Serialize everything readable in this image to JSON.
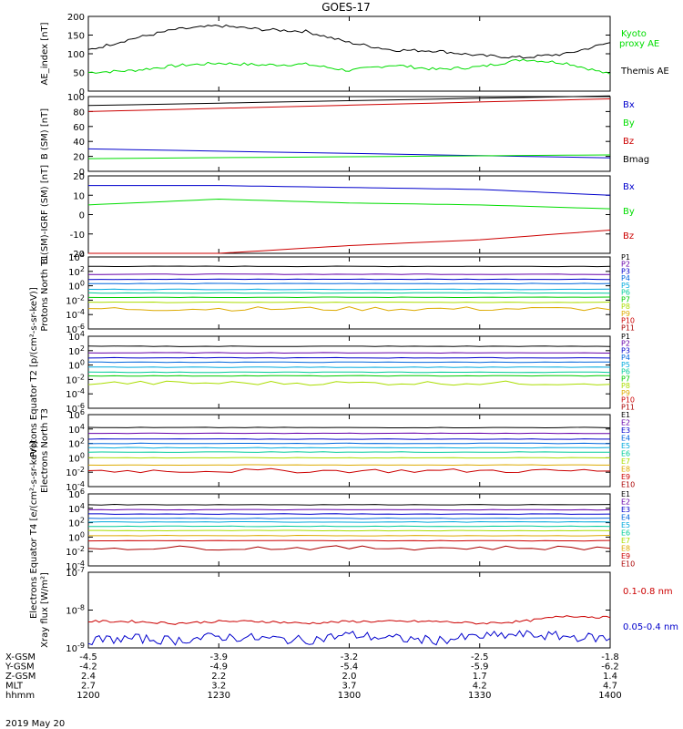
{
  "title": "GOES-17",
  "date": "2019 May 20",
  "colors": {
    "black": "#000000",
    "green": "#00dd00",
    "blue": "#0000cc",
    "red": "#cc0000",
    "p": [
      "#000000",
      "#6600aa",
      "#0000cc",
      "#0066dd",
      "#00aadd",
      "#00cc99",
      "#00cc00",
      "#aadd00",
      "#ddaa00",
      "#cc0000",
      "#aa0000"
    ],
    "e": [
      "#000000",
      "#6600aa",
      "#0000cc",
      "#0066dd",
      "#00aadd",
      "#00cc99",
      "#aadd00",
      "#ddaa00",
      "#cc0000",
      "#aa0000"
    ]
  },
  "x_axis": {
    "rows": [
      {
        "label": "X-GSM",
        "values": [
          "-4.5",
          "-3.9",
          "-3.2",
          "-2.5",
          "-1.8"
        ]
      },
      {
        "label": "Y-GSM",
        "values": [
          "-4.2",
          "-4.9",
          "-5.4",
          "-5.9",
          "-6.2"
        ]
      },
      {
        "label": "Z-GSM",
        "values": [
          "2.4",
          "2.2",
          "2.0",
          "1.7",
          "1.4"
        ]
      },
      {
        "label": "MLT",
        "values": [
          "2.7",
          "3.2",
          "3.7",
          "4.2",
          "4.7"
        ]
      },
      {
        "label": "hhmm",
        "values": [
          "1200",
          "1230",
          "1300",
          "1330",
          "1400"
        ]
      }
    ],
    "hhmm": [
      "1200",
      "1230",
      "1300",
      "1330",
      "1400"
    ]
  },
  "chart_data": [
    {
      "type": "line",
      "ylabel": "AE_index [nT]",
      "yscale": "linear",
      "ylim": [
        0,
        200
      ],
      "yticks": [
        "0",
        "50",
        "100",
        "150",
        "200"
      ],
      "x": [
        1200,
        1210,
        1220,
        1230,
        1240,
        1250,
        1300,
        1310,
        1320,
        1330,
        1340,
        1350,
        1400
      ],
      "series": [
        {
          "name": "Kyoto proxy AE",
          "color": "green",
          "values": [
            50,
            55,
            68,
            75,
            70,
            72,
            55,
            70,
            58,
            65,
            85,
            75,
            45
          ]
        },
        {
          "name": "Themis AE",
          "color": "black",
          "values": [
            110,
            140,
            165,
            175,
            165,
            160,
            130,
            110,
            108,
            95,
            90,
            100,
            130
          ]
        }
      ],
      "legend": [
        "Kyoto",
        "proxy AE",
        "Themis AE"
      ]
    },
    {
      "type": "line",
      "ylabel": "B (SM) [nT]",
      "yscale": "linear",
      "ylim": [
        0,
        100
      ],
      "yticks": [
        "0",
        "20",
        "40",
        "60",
        "80",
        "100"
      ],
      "x": [
        1200,
        1400
      ],
      "series": [
        {
          "name": "Bx",
          "color": "blue",
          "values": [
            30,
            18
          ]
        },
        {
          "name": "By",
          "color": "green",
          "values": [
            17,
            22
          ]
        },
        {
          "name": "Bz",
          "color": "red",
          "values": [
            80,
            97
          ]
        },
        {
          "name": "Bmag",
          "color": "black",
          "values": [
            88,
            101
          ]
        }
      ],
      "legend": [
        "Bx",
        "By",
        "Bz",
        "Bmag"
      ]
    },
    {
      "type": "line",
      "ylabel": "B (SM)-IGRF (SM) [nT]",
      "yscale": "linear",
      "ylim": [
        -20,
        20
      ],
      "yticks": [
        "-20",
        "-10",
        "0",
        "10",
        "20"
      ],
      "x": [
        1200,
        1230,
        1300,
        1330,
        1400
      ],
      "series": [
        {
          "name": "Bx",
          "color": "blue",
          "values": [
            15,
            15,
            14,
            13,
            10
          ]
        },
        {
          "name": "By",
          "color": "green",
          "values": [
            5,
            8,
            6,
            5,
            3
          ]
        },
        {
          "name": "Bz",
          "color": "red",
          "values": [
            -20,
            -20,
            -16,
            -13,
            -8
          ]
        }
      ],
      "legend": [
        "Bx",
        "By",
        "Bz"
      ]
    },
    {
      "type": "line",
      "ylabel": "Protons North T1",
      "yscale": "log",
      "ylim": [
        -6,
        4
      ],
      "yticks": [
        "10-6",
        "10-4",
        "10-2",
        "100",
        "102",
        "104"
      ],
      "log_levels": [
        2.7,
        1.6,
        0.9,
        0.3,
        -0.5,
        -1.0,
        -1.6,
        -2.3,
        -3.2
      ],
      "legend": [
        "P1",
        "P2",
        "P3",
        "P4",
        "P5",
        "P6",
        "P7",
        "P8",
        "P9",
        "P10",
        "P11"
      ]
    },
    {
      "type": "line",
      "ylabel": "Protons Equator T2 [p/(cm²-s-sr-keV)]",
      "yscale": "log",
      "ylim": [
        -6,
        4
      ],
      "yticks": [
        "10-6",
        "10-4",
        "10-2",
        "100",
        "102",
        "104"
      ],
      "log_levels": [
        2.6,
        1.7,
        1.0,
        0.4,
        -0.3,
        -1.0,
        -1.5,
        -2.5
      ],
      "legend": [
        "P1",
        "P2",
        "P3",
        "P4",
        "P5",
        "P6",
        "P7",
        "P8",
        "P9",
        "P10",
        "P11"
      ]
    },
    {
      "type": "line",
      "ylabel": "Electrons North T3",
      "yscale": "log",
      "ylim": [
        -4,
        6
      ],
      "yticks": [
        "10-4",
        "10-2",
        "100",
        "102",
        "104",
        "106"
      ],
      "log_levels": [
        4.2,
        3.4,
        2.6,
        2.0,
        1.4,
        0.8,
        0.0,
        -1.0,
        -1.8
      ],
      "legend": [
        "E1",
        "E2",
        "E3",
        "E4",
        "E5",
        "E6",
        "E7",
        "E8",
        "E9",
        "E10"
      ]
    },
    {
      "type": "line",
      "ylabel": "Electrons Equator T4 [e/(cm²-s-sr-keV)]",
      "yscale": "log",
      "ylim": [
        -4,
        6
      ],
      "yticks": [
        "10-4",
        "10-2",
        "100",
        "102",
        "104",
        "106"
      ],
      "log_levels": [
        4.5,
        3.8,
        3.2,
        2.6,
        2.1,
        1.5,
        0.9,
        0.2,
        -0.5,
        -1.5
      ],
      "legend": [
        "E1",
        "E2",
        "E3",
        "E4",
        "E5",
        "E6",
        "E7",
        "E8",
        "E9",
        "E10"
      ]
    },
    {
      "type": "line",
      "ylabel": "Xray flux [W/m²]",
      "yscale": "log",
      "ylim": [
        -9,
        -7
      ],
      "yticks": [
        "10-9",
        "10-8",
        "10-7"
      ],
      "x": [
        1200,
        1210,
        1220,
        1230,
        1240,
        1250,
        1300,
        1310,
        1320,
        1330,
        1340,
        1350,
        1400
      ],
      "series": [
        {
          "name": "0.1-0.8 nm",
          "color": "red",
          "values": [
            -8.3,
            -8.3,
            -8.35,
            -8.3,
            -8.3,
            -8.35,
            -8.3,
            -8.3,
            -8.3,
            -8.35,
            -8.3,
            -8.15,
            -8.2
          ]
        },
        {
          "name": "0.05-0.4 nm",
          "color": "blue",
          "values": [
            -8.8,
            -8.75,
            -8.8,
            -8.7,
            -8.75,
            -8.8,
            -8.65,
            -8.75,
            -8.8,
            -8.7,
            -8.65,
            -8.7,
            -8.75
          ]
        }
      ],
      "legend": [
        "0.1-0.8 nm",
        "0.05-0.4 nm"
      ]
    }
  ]
}
